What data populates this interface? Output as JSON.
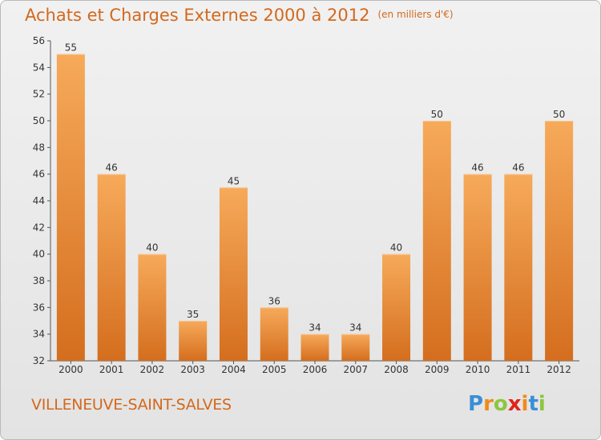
{
  "title": "Achats et Charges Externes 2000 à 2012",
  "subtitle": "(en milliers d'€)",
  "commune": "VILLENEUVE-SAINT-SALVES",
  "logo": {
    "letters": [
      "P",
      "r",
      "o",
      "x",
      "i",
      "t",
      "i"
    ],
    "colors": [
      "#3a8fd6",
      "#f08a1c",
      "#8cc63f",
      "#e2231a",
      "#f08a1c",
      "#3a8fd6",
      "#8cc63f"
    ]
  },
  "colors": {
    "bar_top": "#f6aa5a",
    "bar_bottom": "#d46e1e",
    "text_accent": "#d2691e"
  },
  "chart_data": {
    "type": "bar",
    "categories": [
      "2000",
      "2001",
      "2002",
      "2003",
      "2004",
      "2005",
      "2006",
      "2007",
      "2008",
      "2009",
      "2010",
      "2011",
      "2012"
    ],
    "values": [
      55,
      46,
      40,
      35,
      45,
      36,
      34,
      34,
      40,
      50,
      46,
      46,
      50
    ],
    "data_labels": [
      "55",
      "46",
      "40",
      "35",
      "45",
      "36",
      "34",
      "34",
      "40",
      "50",
      "46",
      "46",
      "50"
    ],
    "yticks": [
      "32",
      "34",
      "36",
      "38",
      "40",
      "42",
      "44",
      "46",
      "48",
      "50",
      "52",
      "54",
      "56"
    ],
    "ylim": [
      32,
      56
    ],
    "grid": false
  }
}
